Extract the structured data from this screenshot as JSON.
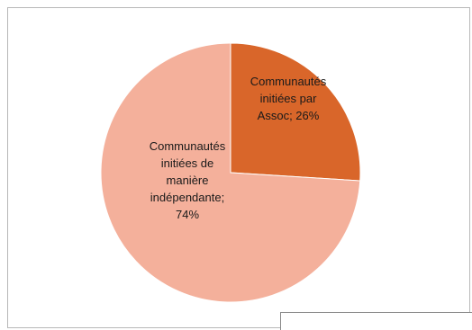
{
  "chart_data": {
    "type": "pie",
    "title": "",
    "slices": [
      {
        "label_lines": [
          "Communautés",
          "initiées par",
          "Assoc; 26%"
        ],
        "value": 26,
        "color": "#D9662A"
      },
      {
        "label_lines": [
          "Communautés",
          "initiées de",
          "manière",
          "indépendante;",
          "74%"
        ],
        "value": 74,
        "color": "#F4B09B"
      }
    ]
  }
}
